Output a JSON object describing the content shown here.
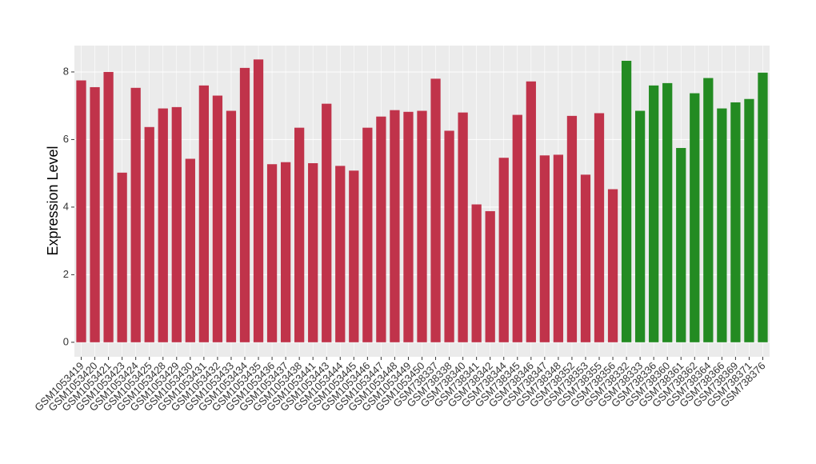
{
  "chart_data": {
    "type": "bar",
    "y_label": "Expression Level",
    "categories": [
      "GSM1053419",
      "GSM1053420",
      "GSM1053421",
      "GSM1053423",
      "GSM1053424",
      "GSM1053425",
      "GSM1053428",
      "GSM1053429",
      "GSM1053430",
      "GSM1053431",
      "GSM1053432",
      "GSM1053433",
      "GSM1053434",
      "GSM1053435",
      "GSM1053436",
      "GSM1053437",
      "GSM1053438",
      "GSM1053441",
      "GSM1053443",
      "GSM1053444",
      "GSM1053445",
      "GSM1053446",
      "GSM1053447",
      "GSM1053448",
      "GSM1053449",
      "GSM1053450",
      "GSM738337",
      "GSM738338",
      "GSM738340",
      "GSM738341",
      "GSM738342",
      "GSM738344",
      "GSM738345",
      "GSM738346",
      "GSM738347",
      "GSM738348",
      "GSM738352",
      "GSM738353",
      "GSM738355",
      "GSM738356",
      "GSM738332",
      "GSM738333",
      "GSM738336",
      "GSM738360",
      "GSM738361",
      "GSM738362",
      "GSM738364",
      "GSM738366",
      "GSM738369",
      "GSM738371",
      "GSM738376"
    ],
    "series": [
      {
        "color": "#c0334a",
        "values": [
          7.75,
          7.55,
          8.0,
          5.02,
          7.53,
          6.37,
          6.92,
          6.96,
          5.43,
          7.6,
          7.3,
          6.85,
          8.12,
          8.37,
          5.27,
          5.33,
          6.35,
          5.3,
          7.06,
          5.22,
          5.08,
          6.35,
          6.68,
          6.87,
          6.82,
          6.85,
          7.8,
          6.26,
          6.8,
          4.08,
          3.88,
          5.46,
          6.73,
          7.72,
          5.53,
          5.55,
          6.7,
          4.96,
          6.78,
          4.53,
          null,
          null,
          null,
          null,
          null,
          null,
          null,
          null,
          null,
          null,
          null
        ]
      },
      {
        "color": "#238b22",
        "values": [
          null,
          null,
          null,
          null,
          null,
          null,
          null,
          null,
          null,
          null,
          null,
          null,
          null,
          null,
          null,
          null,
          null,
          null,
          null,
          null,
          null,
          null,
          null,
          null,
          null,
          null,
          null,
          null,
          null,
          null,
          null,
          null,
          null,
          null,
          null,
          null,
          null,
          null,
          null,
          null,
          8.33,
          6.85,
          7.6,
          7.67,
          5.75,
          7.37,
          7.82,
          6.92,
          7.1,
          7.2,
          7.98
        ]
      }
    ],
    "ylim": [
      -0.43,
      8.78
    ],
    "yticks": [
      0,
      2,
      4,
      6,
      8
    ],
    "grid": true
  }
}
